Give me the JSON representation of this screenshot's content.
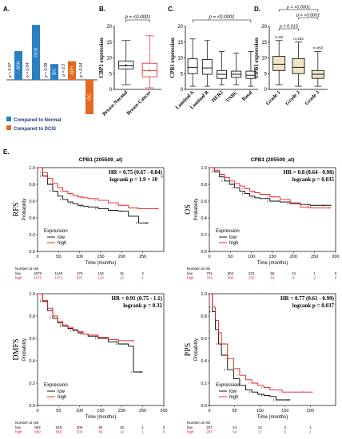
{
  "panel_letters": {
    "a": "A.",
    "b": "B.",
    "c": "C.",
    "d": "D.",
    "e": "E."
  },
  "chart_data": [
    {
      "id": "A",
      "type": "bar",
      "legend": [
        {
          "name": "Compared to Normal",
          "color": "#2a7fc0"
        },
        {
          "name": "Compared to DCIS",
          "color": "#e36a1f"
        }
      ],
      "bars": [
        {
          "label": "ADH",
          "pvalue": "p = 0.07",
          "direction": "up",
          "value": 4.2,
          "series": "normal"
        },
        {
          "label": "DCIS",
          "pvalue": "p = 0.04",
          "direction": "up",
          "value": 8.0,
          "series": "normal"
        },
        {
          "label": "IDC",
          "pvalue": "p = 0.09",
          "direction": "up",
          "value": 2.3,
          "series": "normal"
        },
        {
          "label": "ADH",
          "pvalue": "p = 0.3",
          "direction": "up",
          "value": 2.7,
          "series": "dcis"
        },
        {
          "label": "IDC",
          "pvalue": "p = 0.04",
          "direction": "down",
          "value": 5.0,
          "series": "dcis"
        }
      ]
    },
    {
      "id": "B",
      "type": "box",
      "ylabel": "CBP1 expression",
      "ylim": [
        0,
        20
      ],
      "yticks": [
        "0",
        "5",
        "10",
        "15",
        "20"
      ],
      "pvalue": "p = <0.0001",
      "groups": [
        {
          "name": "Breast-Normal",
          "min": 1.5,
          "q1": 6.5,
          "median": 7.5,
          "q3": 9.0,
          "max": 15.5,
          "mean": 7.7,
          "color": "#000000"
        },
        {
          "name": "Breast-Cancer",
          "min": 0.5,
          "q1": 4.0,
          "median": 6.0,
          "q3": 8.3,
          "max": 17.0,
          "mean": 6.1,
          "color": "#e41a1c"
        }
      ]
    },
    {
      "id": "C",
      "type": "box",
      "ylabel": "CPB1 expression",
      "ylim": [
        0,
        20
      ],
      "yticks": [
        "0",
        "5",
        "10",
        "15",
        "20"
      ],
      "pvalue": "p = <0.0001",
      "groups": [
        {
          "name": "Luminal A",
          "min": 1.0,
          "q1": 5.0,
          "median": 7.0,
          "q3": 9.7,
          "max": 16.0
        },
        {
          "name": "Luminal B",
          "min": 1.0,
          "q1": 4.8,
          "median": 6.8,
          "q3": 9.5,
          "max": 15.5
        },
        {
          "name": "HER2",
          "min": 1.5,
          "q1": 3.5,
          "median": 4.8,
          "q3": 6.0,
          "max": 12.0
        },
        {
          "name": "TNBC",
          "min": 1.5,
          "q1": 3.8,
          "median": 4.8,
          "q3": 5.8,
          "max": 11.5
        },
        {
          "name": "Basal",
          "min": 1.0,
          "q1": 3.5,
          "median": 4.5,
          "q3": 5.8,
          "max": 12.0
        }
      ]
    },
    {
      "id": "D",
      "type": "box",
      "ylabel": "CPB1 expression",
      "ylim": [
        0,
        20
      ],
      "yticks": [
        "0",
        "5",
        "10",
        "15",
        "20"
      ],
      "comparisons": [
        {
          "from": 0,
          "to": 2,
          "label": "p = <0.0001"
        },
        {
          "from": 1,
          "to": 2,
          "label": "p = <0.0001"
        },
        {
          "from": 0,
          "to": 1,
          "label": "p = 0.015"
        }
      ],
      "groups": [
        {
          "name": "Grade 1",
          "n": "n=82",
          "min": 1.5,
          "q1": 6.0,
          "median": 8.0,
          "q3": 10.5,
          "max": 15.5
        },
        {
          "name": "Grade 2",
          "n": "n=193",
          "min": 1.0,
          "q1": 5.0,
          "median": 7.0,
          "q3": 9.8,
          "max": 15.0
        },
        {
          "name": "Grade 3",
          "n": "n=450",
          "min": 1.0,
          "q1": 3.5,
          "median": 4.8,
          "q3": 6.0,
          "max": 12.0
        }
      ]
    },
    {
      "id": "E-RFS",
      "type": "line",
      "probe": "CPB1 (205509_at)",
      "side_label": "RFS",
      "hr": "HR = 0.75 (0.67 - 0.84)",
      "logrank": "logrank p = 1.9 × 10",
      "logrank_exp": "-7",
      "xlabel": "Time (months)",
      "ylabel": "Probability",
      "xlim": [
        0,
        300
      ],
      "xticks": [
        0,
        50,
        100,
        150,
        200,
        250
      ],
      "ylim": [
        0,
        1
      ],
      "yticks": [
        "0.0",
        "0.2",
        "0.4",
        "0.6",
        "0.8",
        "1.0"
      ],
      "legend_title": "Expression",
      "series": [
        {
          "name": "low",
          "color": "#000000",
          "x": [
            0,
            12,
            24,
            36,
            48,
            60,
            72,
            84,
            96,
            108,
            120,
            144,
            168,
            180,
            192,
            204,
            216,
            240,
            252,
            264
          ],
          "y": [
            1.0,
            0.9,
            0.8,
            0.72,
            0.66,
            0.62,
            0.59,
            0.57,
            0.55,
            0.54,
            0.53,
            0.51,
            0.49,
            0.49,
            0.48,
            0.48,
            0.42,
            0.34,
            0.34,
            0.34
          ]
        },
        {
          "name": "high",
          "color": "#e41a1c",
          "x": [
            0,
            12,
            24,
            36,
            48,
            60,
            72,
            84,
            96,
            108,
            120,
            144,
            168,
            192,
            216,
            240,
            264,
            288
          ],
          "y": [
            1.0,
            0.94,
            0.87,
            0.81,
            0.76,
            0.72,
            0.69,
            0.67,
            0.65,
            0.64,
            0.63,
            0.61,
            0.58,
            0.55,
            0.52,
            0.51,
            0.51,
            0.51
          ]
        }
      ],
      "risk_header": "Number at risk",
      "risk": [
        {
          "name": "low",
          "values": [
            "1978",
            "1148",
            "476",
            "118",
            "15",
            "2"
          ]
        },
        {
          "name": "high",
          "values": [
            "1673",
            "1371",
            "597",
            "123",
            "12",
            "1"
          ]
        }
      ]
    },
    {
      "id": "E-OS",
      "type": "line",
      "probe": "CPB1 (205509_at)",
      "side_label": "OS",
      "hr": "HR = 0.8 (0.64 - 0.98)",
      "logrank": "logrank p = 0.035",
      "xlabel": "Time (months)",
      "ylabel": "Probability",
      "xlim": [
        0,
        300
      ],
      "xticks": [
        0,
        50,
        100,
        150,
        200,
        250,
        300
      ],
      "ylim": [
        0,
        1
      ],
      "yticks": [
        "0.0",
        "0.2",
        "0.4",
        "0.6",
        "0.8",
        "1.0"
      ],
      "legend_title": "Expression",
      "series": [
        {
          "name": "low",
          "color": "#000000",
          "x": [
            0,
            12,
            24,
            36,
            48,
            60,
            72,
            84,
            96,
            108,
            120,
            144,
            168,
            192,
            216,
            240,
            264,
            276,
            290
          ],
          "y": [
            1.0,
            0.95,
            0.89,
            0.84,
            0.8,
            0.76,
            0.72,
            0.69,
            0.66,
            0.64,
            0.63,
            0.6,
            0.59,
            0.57,
            0.56,
            0.55,
            0.55,
            0.55,
            0.55
          ]
        },
        {
          "name": "high",
          "color": "#e41a1c",
          "x": [
            0,
            12,
            24,
            36,
            48,
            60,
            72,
            84,
            96,
            108,
            120,
            144,
            168,
            192,
            216,
            240,
            264,
            290
          ],
          "y": [
            1.0,
            0.97,
            0.92,
            0.88,
            0.84,
            0.81,
            0.78,
            0.75,
            0.72,
            0.7,
            0.68,
            0.65,
            0.62,
            0.58,
            0.53,
            0.52,
            0.52,
            0.52
          ]
        }
      ],
      "risk_header": "Number at risk",
      "risk": [
        {
          "name": "low",
          "values": [
            "701",
            "503",
            "222",
            "66",
            "13",
            "1",
            "0"
          ]
        },
        {
          "name": "high",
          "values": [
            "701",
            "590",
            "256",
            "63",
            "8",
            "2",
            "0"
          ]
        }
      ]
    },
    {
      "id": "E-DMFS",
      "type": "line",
      "side_label": "DMFS",
      "hr": "HR = 0.91 (0.75 - 1.1)",
      "logrank": "logrank p = 0.32",
      "xlabel": "Time (months)",
      "ylabel": "Probability",
      "xlim": [
        0,
        300
      ],
      "xticks": [
        0,
        50,
        100,
        150,
        200,
        250,
        300
      ],
      "ylim": [
        0,
        1
      ],
      "yticks": [
        "0.0",
        "0.2",
        "0.4",
        "0.6",
        "0.8",
        "1.0"
      ],
      "legend_title": "Expression",
      "series": [
        {
          "name": "low",
          "color": "#000000",
          "x": [
            0,
            12,
            24,
            36,
            48,
            60,
            72,
            84,
            96,
            108,
            120,
            144,
            168,
            192,
            216,
            228,
            240,
            250
          ],
          "y": [
            1.0,
            0.93,
            0.85,
            0.78,
            0.74,
            0.71,
            0.69,
            0.67,
            0.65,
            0.64,
            0.62,
            0.6,
            0.57,
            0.55,
            0.53,
            0.3,
            0.3,
            0.3
          ]
        },
        {
          "name": "high",
          "color": "#e41a1c",
          "x": [
            0,
            12,
            24,
            36,
            48,
            60,
            72,
            84,
            96,
            108,
            120,
            144,
            168,
            192,
            216,
            230
          ],
          "y": [
            1.0,
            0.94,
            0.87,
            0.8,
            0.75,
            0.72,
            0.7,
            0.68,
            0.66,
            0.64,
            0.63,
            0.61,
            0.59,
            0.58,
            0.58,
            0.58
          ]
        }
      ],
      "risk_header": "Number at risk",
      "risk": [
        {
          "name": "low",
          "values": [
            "904",
            "618",
            "306",
            "82",
            "15",
            "1",
            "0"
          ]
        },
        {
          "name": "high",
          "values": [
            "899",
            "669",
            "303",
            "65",
            "12",
            "1",
            "0"
          ]
        }
      ]
    },
    {
      "id": "E-PPS",
      "type": "line",
      "side_label": "PPS",
      "hr": "HR = 0.77 (0.61 - 0.99)",
      "logrank": "logrank p = 0.037",
      "xlabel": "Time (months)",
      "ylabel": "Probability",
      "xlim": [
        0,
        250
      ],
      "xticks": [
        0,
        50,
        100,
        150,
        200
      ],
      "ylim": [
        0,
        1
      ],
      "yticks": [
        "0.0",
        "0.2",
        "0.4",
        "0.6",
        "0.8",
        "1.0"
      ],
      "legend_title": "Expression",
      "series": [
        {
          "name": "low",
          "color": "#000000",
          "x": [
            0,
            6,
            12,
            18,
            24,
            36,
            48,
            60,
            72,
            84,
            96,
            108,
            120,
            132,
            144,
            160
          ],
          "y": [
            1.0,
            0.84,
            0.68,
            0.55,
            0.45,
            0.32,
            0.24,
            0.18,
            0.14,
            0.12,
            0.1,
            0.09,
            0.08,
            0.05,
            0.05,
            0.05
          ]
        },
        {
          "name": "high",
          "color": "#e41a1c",
          "x": [
            0,
            6,
            12,
            18,
            24,
            36,
            48,
            60,
            72,
            84,
            96,
            108,
            120,
            144,
            168,
            190,
            205
          ],
          "y": [
            1.0,
            0.88,
            0.76,
            0.65,
            0.55,
            0.42,
            0.33,
            0.27,
            0.23,
            0.2,
            0.18,
            0.16,
            0.14,
            0.12,
            0.12,
            0.12,
            0.12
          ]
        }
      ],
      "risk_header": "Number at risk",
      "risk": [
        {
          "name": "low",
          "values": [
            "207",
            "44",
            "14",
            "3",
            "1"
          ]
        },
        {
          "name": "high",
          "values": [
            "207",
            "54",
            "17",
            "6",
            "1"
          ]
        }
      ]
    }
  ]
}
